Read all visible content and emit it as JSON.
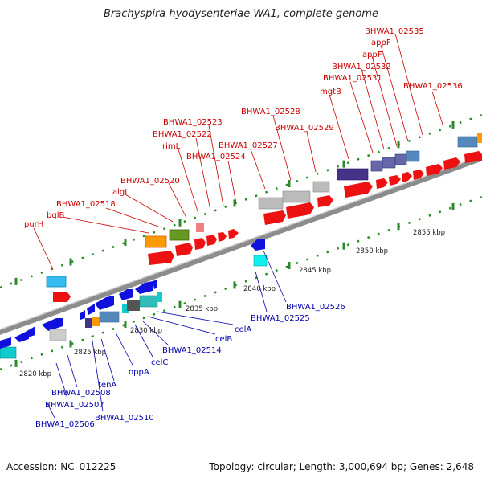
{
  "title": "Brachyspira hyodysenteriae WA1, complete genome",
  "accession": "Accession: NC_012225",
  "summary": "Topology: circular; Length: 3,000,694 bp; Genes: 2,648",
  "colors": {
    "top_label": "#cc0000",
    "bottom_label": "#0000aa",
    "backbone": "#8c8c8c"
  },
  "ticks": [
    "2820 kbp",
    "2825 kbp",
    "2830 kbp",
    "2835 kbp",
    "2840 kbp",
    "2845 kbp",
    "2850 kbp",
    "2855 kbp"
  ],
  "top_labels": [
    "purH",
    "bglB",
    "BHWA1_02518",
    "algI",
    "BHWA1_02520",
    "rimL",
    "BHWA1_02522",
    "BHWA1_02523",
    "BHWA1_02524",
    "BHWA1_02527",
    "BHWA1_02528",
    "BHWA1_02529",
    "mgtB",
    "BHWA1_02531",
    "BHWA1_02532",
    "appF",
    "appF",
    "BHWA1_02535",
    "BHWA1_02536"
  ],
  "bottom_labels": [
    "BHWA1_02506",
    "BHWA1_02507",
    "BHWA1_02508",
    "BHWA1_02510",
    "tenA",
    "oppA",
    "celC",
    "BHWA1_02514",
    "celB",
    "celA",
    "BHWA1_02525",
    "BHWA1_02526"
  ]
}
